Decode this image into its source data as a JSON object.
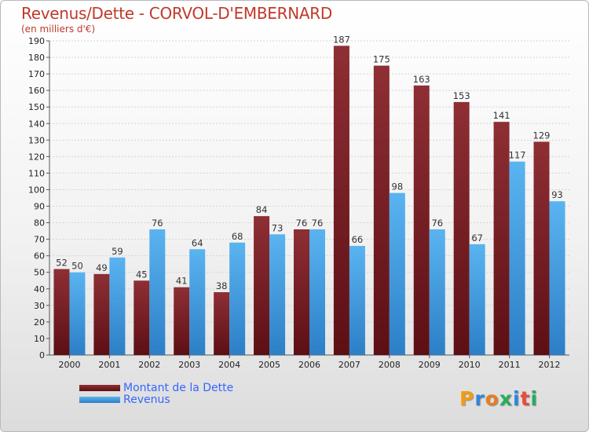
{
  "title": "Revenus/Dette - CORVOL-D'EMBERNARD",
  "unit_label": "(en milliers d'€)",
  "colors": {
    "debt": "#7a1f24",
    "revenue": "#4aa3e6",
    "title": "#c0392b",
    "legend_text": "#3366ff"
  },
  "chart_data": {
    "type": "bar",
    "categories": [
      "2000",
      "2001",
      "2002",
      "2003",
      "2004",
      "2005",
      "2006",
      "2007",
      "2008",
      "2009",
      "2010",
      "2011",
      "2012"
    ],
    "series": [
      {
        "name": "Montant de la Dette",
        "values": [
          52,
          49,
          45,
          41,
          38,
          84,
          76,
          187,
          175,
          163,
          153,
          141,
          129
        ]
      },
      {
        "name": "Revenus",
        "values": [
          50,
          59,
          76,
          64,
          68,
          73,
          76,
          66,
          98,
          76,
          67,
          117,
          93
        ]
      }
    ],
    "ylim": [
      0,
      190
    ],
    "yticks": [
      0,
      10,
      20,
      30,
      40,
      50,
      60,
      70,
      80,
      90,
      100,
      110,
      120,
      130,
      140,
      150,
      160,
      170,
      180,
      190
    ],
    "grid": true,
    "legend": "bottom-left"
  },
  "legend": {
    "debt": "Montant de la Dette",
    "revenue": "Revenus"
  },
  "logo": {
    "letters": [
      "P",
      "r",
      "o",
      "x",
      "i",
      "t",
      "i"
    ],
    "colors": [
      "#f39c12",
      "#2e86de",
      "#e67e22",
      "#27ae60",
      "#2e86de",
      "#e74c3c",
      "#27ae60"
    ]
  }
}
